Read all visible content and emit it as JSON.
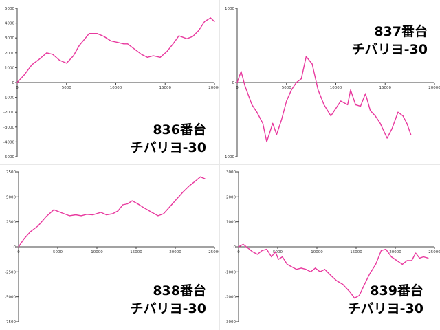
{
  "chart_data": [
    {
      "type": "line",
      "title": "",
      "xlabel": "",
      "ylabel": "",
      "xlim": [
        0,
        20000
      ],
      "ylim": [
        -5000,
        5000
      ],
      "xticks": [
        0,
        5000,
        10000,
        15000,
        20000
      ],
      "yticks": [
        -5000,
        -4000,
        -3000,
        -2000,
        -1000,
        0,
        1000,
        2000,
        3000,
        4000,
        5000
      ],
      "grid": false,
      "color": "#e8399e",
      "caption": [
        "836番台",
        "チバリヨ-30"
      ],
      "x": [
        0,
        700,
        1500,
        2300,
        3000,
        3600,
        4300,
        5000,
        5700,
        6300,
        6800,
        7300,
        8100,
        8800,
        9500,
        10200,
        10800,
        11200,
        11800,
        12600,
        13200,
        13800,
        14500,
        15200,
        15800,
        16400,
        17200,
        17800,
        18400,
        19000,
        19600,
        20000
      ],
      "y": [
        0,
        500,
        1200,
        1600,
        2000,
        1900,
        1500,
        1300,
        1800,
        2500,
        2900,
        3300,
        3300,
        3100,
        2800,
        2700,
        2600,
        2600,
        2300,
        1900,
        1700,
        1800,
        1700,
        2100,
        2600,
        3150,
        2950,
        3100,
        3500,
        4100,
        4350,
        4100
      ]
    },
    {
      "type": "line",
      "title": "",
      "xlabel": "",
      "ylabel": "",
      "xlim": [
        0,
        20000
      ],
      "ylim": [
        -1000,
        1000
      ],
      "xticks": [
        0,
        5000,
        10000,
        15000,
        20000
      ],
      "yticks": [
        -1000,
        0,
        1000
      ],
      "grid": false,
      "color": "#e8399e",
      "caption": [
        "837番台",
        "チバリヨ-30"
      ],
      "x": [
        0,
        400,
        800,
        1500,
        2000,
        2600,
        3000,
        3600,
        4000,
        4500,
        5000,
        5500,
        6000,
        6500,
        7000,
        7600,
        8200,
        8800,
        9500,
        10000,
        10500,
        11200,
        11500,
        12000,
        12500,
        13000,
        13500,
        14000,
        14500,
        15200,
        15700,
        16300,
        16800,
        17200,
        17600
      ],
      "y": [
        0,
        150,
        -50,
        -300,
        -400,
        -550,
        -800,
        -550,
        -700,
        -500,
        -250,
        -100,
        0,
        50,
        350,
        250,
        -100,
        -300,
        -450,
        -350,
        -250,
        -300,
        -100,
        -300,
        -320,
        -150,
        -380,
        -450,
        -550,
        -750,
        -620,
        -400,
        -450,
        -550,
        -700
      ]
    },
    {
      "type": "line",
      "title": "",
      "xlabel": "",
      "ylabel": "",
      "xlim": [
        0,
        25000
      ],
      "ylim": [
        -7500,
        7500
      ],
      "xticks": [
        0,
        5000,
        10000,
        15000,
        20000,
        25000
      ],
      "yticks": [
        -7500,
        -5000,
        -2500,
        0,
        2500,
        5000,
        7500
      ],
      "grid": false,
      "color": "#e8399e",
      "caption": [
        "838番台",
        "チバリヨ-30"
      ],
      "x": [
        0,
        700,
        1500,
        2500,
        3500,
        4500,
        5500,
        6500,
        7300,
        8000,
        8700,
        9500,
        10500,
        11200,
        12000,
        12700,
        13300,
        13900,
        14500,
        15200,
        16000,
        17000,
        17800,
        18500,
        19300,
        20200,
        21000,
        21800,
        22600,
        23200,
        23800
      ],
      "y": [
        0,
        800,
        1500,
        2100,
        3000,
        3700,
        3400,
        3100,
        3200,
        3100,
        3250,
        3200,
        3450,
        3200,
        3300,
        3600,
        4200,
        4300,
        4600,
        4300,
        3900,
        3450,
        3100,
        3300,
        4000,
        4800,
        5500,
        6100,
        6600,
        7000,
        6800
      ]
    },
    {
      "type": "line",
      "title": "",
      "xlabel": "",
      "ylabel": "",
      "xlim": [
        0,
        25000
      ],
      "ylim": [
        -3000,
        3000
      ],
      "xticks": [
        0,
        5000,
        10000,
        15000,
        20000,
        25000
      ],
      "yticks": [
        -3000,
        -2000,
        -1000,
        0,
        1000,
        2000,
        3000
      ],
      "grid": false,
      "color": "#e8399e",
      "caption": [
        "839番台",
        "チバリヨ-30"
      ],
      "x": [
        0,
        600,
        1200,
        1800,
        2400,
        3000,
        3600,
        4200,
        4700,
        5100,
        5600,
        6200,
        6800,
        7400,
        8000,
        8600,
        9200,
        9800,
        10400,
        11000,
        11800,
        12500,
        13300,
        14200,
        14800,
        15400,
        16000,
        16700,
        17500,
        18200,
        18800,
        19500,
        20200,
        20900,
        21500,
        22100,
        22600,
        23100,
        23600,
        24200
      ],
      "y": [
        0,
        100,
        -50,
        -200,
        -300,
        -150,
        -100,
        -400,
        -200,
        -500,
        -400,
        -700,
        -800,
        -900,
        -850,
        -900,
        -1000,
        -850,
        -1000,
        -900,
        -1150,
        -1350,
        -1500,
        -1800,
        -2050,
        -1950,
        -1550,
        -1100,
        -700,
        -150,
        -100,
        -400,
        -550,
        -700,
        -550,
        -550,
        -250,
        -450,
        -400,
        -450
      ]
    }
  ]
}
